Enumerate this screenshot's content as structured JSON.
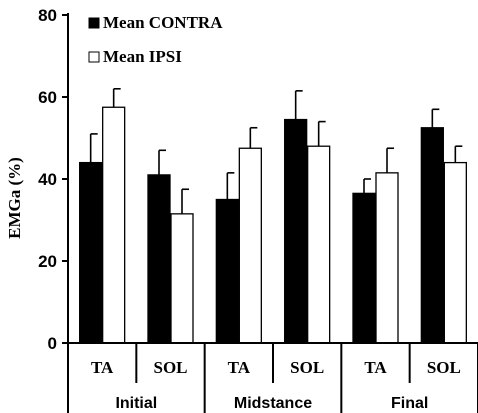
{
  "chart_data": {
    "type": "bar",
    "ylabel": "EMGa  (%)",
    "ylim": [
      0,
      80
    ],
    "yticks": [
      0,
      20,
      40,
      60,
      80
    ],
    "categories": [
      "TA",
      "SOL",
      "TA",
      "SOL",
      "TA",
      "SOL"
    ],
    "groups": [
      {
        "label": "Initial",
        "categories": [
          "TA",
          "SOL"
        ]
      },
      {
        "label": "Midstance",
        "categories": [
          "TA",
          "SOL"
        ]
      },
      {
        "label": "Final",
        "categories": [
          "TA",
          "SOL"
        ]
      }
    ],
    "series": [
      {
        "name": "Mean CONTRA",
        "color": "#000000",
        "values": [
          44,
          41,
          35,
          54.5,
          36.5,
          52.5
        ],
        "errors": [
          7,
          6,
          6.5,
          7,
          3.5,
          4.5
        ]
      },
      {
        "name": "Mean IPSI",
        "color": "#ffffff",
        "values": [
          57.5,
          31.5,
          47.5,
          48,
          41.5,
          44
        ],
        "errors": [
          4.5,
          6,
          5,
          6,
          6,
          4
        ]
      }
    ],
    "legend_position": "top-left",
    "grid": false
  }
}
